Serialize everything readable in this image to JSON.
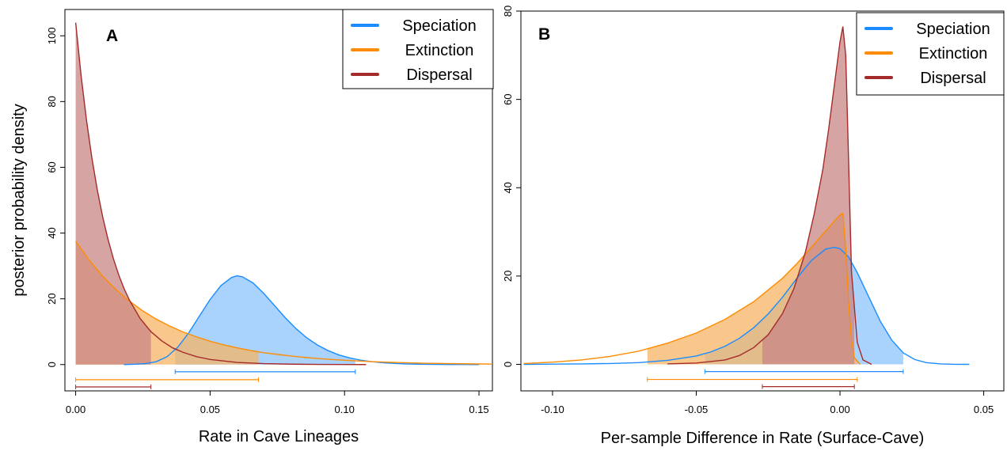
{
  "chart_data": [
    {
      "panel": "A",
      "type": "area",
      "xlabel": "Rate in Cave Lineages",
      "ylabel": "posterior probability density",
      "xlim": [
        -0.004,
        0.155
      ],
      "ylim": [
        -8,
        108
      ],
      "xticks": [
        "0.00",
        "0.05",
        "0.10",
        "0.15"
      ],
      "xtick_values": [
        0,
        0.05,
        0.1,
        0.15
      ],
      "yticks": [
        "0",
        "20",
        "40",
        "60",
        "80",
        "100"
      ],
      "ytick_values": [
        0,
        20,
        40,
        60,
        80,
        100
      ],
      "legend_position": "top-right",
      "series": [
        {
          "name": "Speciation",
          "color": "#1a8cff",
          "fill": "#8cc4fb",
          "x": [
            0.018,
            0.022,
            0.026,
            0.03,
            0.034,
            0.038,
            0.042,
            0.046,
            0.05,
            0.054,
            0.058,
            0.06,
            0.062,
            0.066,
            0.07,
            0.074,
            0.078,
            0.082,
            0.086,
            0.09,
            0.094,
            0.098,
            0.102,
            0.106,
            0.11,
            0.115,
            0.12,
            0.125,
            0.13,
            0.135,
            0.14,
            0.145,
            0.15
          ],
          "y": [
            0,
            0.1,
            0.3,
            0.9,
            2.4,
            5.3,
            9.6,
            14.7,
            19.8,
            24,
            26.5,
            27,
            26.7,
            24.8,
            21.6,
            17.9,
            14.2,
            10.9,
            8.1,
            5.9,
            4.2,
            2.9,
            2.0,
            1.35,
            0.9,
            0.5,
            0.28,
            0.15,
            0.08,
            0.04,
            0.02,
            0.01,
            0
          ],
          "hpd": [
            0.037,
            0.104
          ]
        },
        {
          "name": "Extinction",
          "color": "#ff8c00",
          "fill": "#f7b466",
          "x": [
            0,
            0.005,
            0.01,
            0.015,
            0.02,
            0.025,
            0.03,
            0.035,
            0.04,
            0.045,
            0.05,
            0.055,
            0.06,
            0.065,
            0.07,
            0.075,
            0.08,
            0.085,
            0.09,
            0.095,
            0.1,
            0.105,
            0.11,
            0.12,
            0.13,
            0.14,
            0.15,
            0.155
          ],
          "y": [
            37.5,
            31.8,
            26.9,
            22.8,
            19.3,
            16.3,
            13.8,
            11.7,
            9.9,
            8.4,
            7.1,
            6.0,
            5.1,
            4.3,
            3.6,
            3.1,
            2.6,
            2.2,
            1.85,
            1.55,
            1.3,
            1.1,
            0.9,
            0.62,
            0.42,
            0.28,
            0.18,
            0.14
          ],
          "hpd": [
            0,
            0.068
          ]
        },
        {
          "name": "Dispersal",
          "color": "#a52a2a",
          "fill": "#c98686",
          "x": [
            0,
            0.002,
            0.004,
            0.006,
            0.008,
            0.01,
            0.012,
            0.014,
            0.016,
            0.018,
            0.02,
            0.024,
            0.028,
            0.032,
            0.036,
            0.04,
            0.045,
            0.05,
            0.06,
            0.07,
            0.08,
            0.09,
            0.1,
            0.108
          ],
          "y": [
            104,
            88,
            74.5,
            63,
            53.3,
            45.1,
            38.2,
            32.3,
            27.3,
            23.1,
            19.6,
            14,
            10,
            7.2,
            5.1,
            3.7,
            2.4,
            1.55,
            0.66,
            0.28,
            0.12,
            0.05,
            0.02,
            0
          ],
          "hpd": [
            0,
            0.028
          ]
        }
      ]
    },
    {
      "panel": "B",
      "type": "area",
      "xlabel": "Per-sample Difference in Rate (Surface-Cave)",
      "ylabel": "",
      "xlim": [
        -0.111,
        0.057
      ],
      "ylim": [
        -6,
        80
      ],
      "xticks": [
        "-0.10",
        "-0.05",
        "0.00",
        "0.05"
      ],
      "xtick_values": [
        -0.1,
        -0.05,
        0,
        0.05
      ],
      "yticks": [
        "0",
        "20",
        "40",
        "60",
        "80"
      ],
      "ytick_values": [
        0,
        20,
        40,
        60,
        80
      ],
      "legend_position": "top-right",
      "series": [
        {
          "name": "Speciation",
          "color": "#1a8cff",
          "fill": "#8cc4fb",
          "x": [
            -0.11,
            -0.1,
            -0.09,
            -0.08,
            -0.07,
            -0.06,
            -0.05,
            -0.045,
            -0.04,
            -0.035,
            -0.03,
            -0.025,
            -0.02,
            -0.015,
            -0.01,
            -0.005,
            -0.002,
            0,
            0.003,
            0.006,
            0.01,
            0.014,
            0.018,
            0.022,
            0.026,
            0.03,
            0.035,
            0.04,
            0.045
          ],
          "y": [
            0,
            0.05,
            0.1,
            0.2,
            0.4,
            0.9,
            1.9,
            2.8,
            4.1,
            5.9,
            8.3,
            11.4,
            15.2,
            19.5,
            23.5,
            26.1,
            26.5,
            26.2,
            24.3,
            20.8,
            15.3,
            9.8,
            5.5,
            2.6,
            1.1,
            0.4,
            0.1,
            0.02,
            0
          ],
          "hpd": [
            -0.047,
            0.022
          ]
        },
        {
          "name": "Extinction",
          "color": "#ff8c00",
          "fill": "#f7b466",
          "x": [
            -0.11,
            -0.1,
            -0.09,
            -0.08,
            -0.07,
            -0.06,
            -0.05,
            -0.04,
            -0.03,
            -0.02,
            -0.015,
            -0.01,
            -0.005,
            -0.002,
            0,
            0.001,
            0.002,
            0.003,
            0.004,
            0.005,
            0.007
          ],
          "y": [
            0.2,
            0.5,
            1.0,
            1.8,
            3.0,
            4.8,
            7.1,
            10.2,
            14.2,
            19.5,
            22.8,
            26.5,
            30.2,
            32.4,
            33.8,
            34.2,
            26,
            14,
            5.5,
            1.5,
            0
          ],
          "hpd": [
            -0.067,
            0.006
          ]
        },
        {
          "name": "Dispersal",
          "color": "#a52a2a",
          "fill": "#c98686",
          "x": [
            -0.06,
            -0.05,
            -0.04,
            -0.035,
            -0.03,
            -0.025,
            -0.02,
            -0.016,
            -0.012,
            -0.009,
            -0.006,
            -0.004,
            -0.002,
            0,
            0.001,
            0.002,
            0.003,
            0.004,
            0.006,
            0.008,
            0.011
          ],
          "y": [
            0.1,
            0.3,
            1.0,
            2.0,
            3.8,
            6.7,
            11.5,
            17.2,
            25.5,
            34,
            44,
            53,
            63,
            73,
            76.5,
            70,
            46,
            21,
            5,
            1,
            0
          ],
          "hpd": [
            -0.027,
            0.005
          ]
        }
      ]
    }
  ]
}
